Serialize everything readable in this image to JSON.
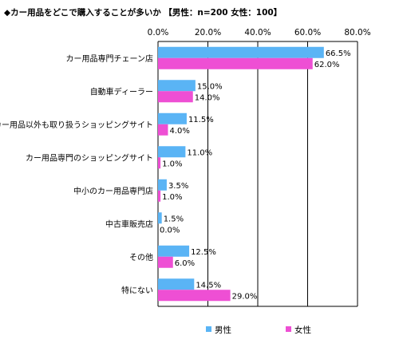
{
  "chart_data": {
    "type": "bar",
    "orientation": "horizontal",
    "title": "◆カー用品をどこで購入することが多いか 【男性：n=200 女性：100】",
    "categories": [
      "カー用品専門チェーン店",
      "自動車ディーラー",
      "カー用品以外も取り扱うショッピングサイト",
      "カー用品専門のショッピングサイト",
      "中小のカー用品専門店",
      "中古車販売店",
      "その他",
      "特にない"
    ],
    "series": [
      {
        "name": "男性",
        "color": "#5ab4f5",
        "values": [
          66.5,
          15.0,
          11.5,
          11.0,
          3.5,
          1.5,
          12.5,
          14.5
        ]
      },
      {
        "name": "女性",
        "color": "#ee4fd4",
        "values": [
          62.0,
          14.0,
          4.0,
          1.0,
          1.0,
          0.0,
          6.0,
          29.0
        ]
      }
    ],
    "value_labels": [
      [
        "66.5%",
        "15.0%",
        "11.5%",
        "11.0%",
        "3.5%",
        "1.5%",
        "12.5%",
        "14.5%"
      ],
      [
        "62.0%",
        "14.0%",
        "4.0%",
        "1.0%",
        "1.0%",
        "0.0%",
        "6.0%",
        "29.0%"
      ]
    ],
    "xlim": [
      0,
      80
    ],
    "ticks": [
      0,
      20,
      40,
      60,
      80
    ],
    "tick_labels": [
      "0.0%",
      "20.0%",
      "40.0%",
      "60.0%",
      "80.0%"
    ],
    "axis_position": "top",
    "grid": true,
    "legend_position": "bottom"
  }
}
